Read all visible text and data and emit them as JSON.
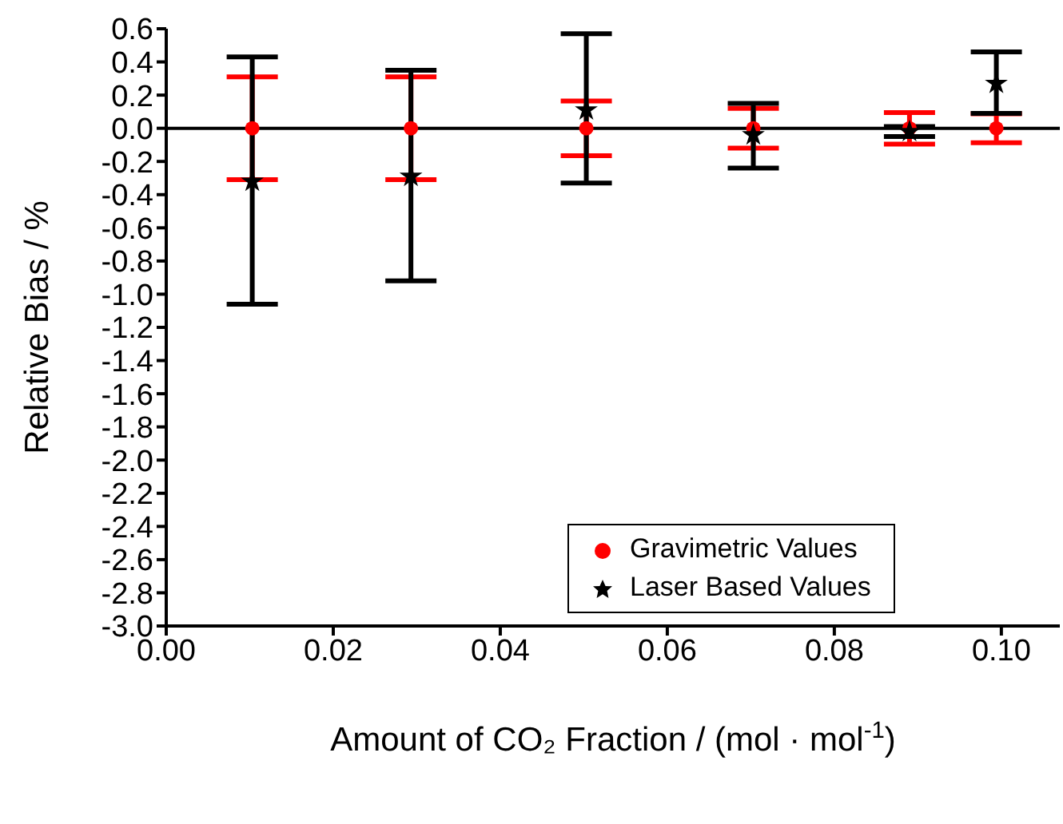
{
  "chart_data": {
    "type": "scatter",
    "xlabel": "Amount of CO₂ Fraction / (mol · mol$^{-1}$)",
    "ylabel": "Relative Bias  /  %",
    "series": [
      {
        "name": "Gravimetric Values",
        "color": "#ff0000",
        "marker": "circle",
        "x": [
          0.0103,
          0.0293,
          0.0503,
          0.0703,
          0.089,
          0.0994
        ],
        "values": [
          0,
          0,
          0,
          0,
          0,
          0
        ],
        "errors": [
          0.31,
          0.31,
          0.165,
          0.12,
          0.095,
          0.087
        ]
      },
      {
        "name": "Laser Based Values",
        "color": "#000000",
        "marker": "star",
        "x": [
          0.0103,
          0.0293,
          0.0503,
          0.0703,
          0.089,
          0.0994
        ],
        "values": [
          -0.32,
          -0.29,
          0.11,
          -0.04,
          -0.02,
          0.27
        ],
        "errors": [
          [
            -1.06,
            0.43
          ],
          [
            -0.92,
            0.35
          ],
          [
            -0.33,
            0.57
          ],
          [
            -0.24,
            0.15
          ],
          [
            -0.05,
            0.01
          ],
          [
            0.09,
            0.46
          ]
        ]
      }
    ],
    "xlim": [
      0,
      0.107
    ],
    "xticks": [
      {
        "value": 0,
        "label": "0.00"
      },
      {
        "value": 0.02,
        "label": "0.02"
      },
      {
        "value": 0.04,
        "label": "0.04"
      },
      {
        "value": 0.06,
        "label": "0.06"
      },
      {
        "value": 0.08,
        "label": "0.08"
      },
      {
        "value": 0.1,
        "label": "0.10"
      }
    ],
    "ylim": [
      -3,
      0.6
    ],
    "yticks": [
      {
        "value": 0.6,
        "label": "0.6"
      },
      {
        "value": 0.4,
        "label": "0.4"
      },
      {
        "value": 0.2,
        "label": "0.2"
      },
      {
        "value": 0,
        "label": "0.0"
      },
      {
        "value": -0.2,
        "label": "-0.2"
      },
      {
        "value": -0.4,
        "label": "-0.4"
      },
      {
        "value": -0.6,
        "label": "-0.6"
      },
      {
        "value": -0.8,
        "label": "-0.8"
      },
      {
        "value": -1,
        "label": "-1.0"
      },
      {
        "value": -1.2,
        "label": "-1.2"
      },
      {
        "value": -1.4,
        "label": "-1.4"
      },
      {
        "value": -1.6,
        "label": "-1.6"
      },
      {
        "value": -1.8,
        "label": "-1.8"
      },
      {
        "value": -2,
        "label": "-2.0"
      },
      {
        "value": -2.2,
        "label": "-2.2"
      },
      {
        "value": -2.4,
        "label": "-2.4"
      },
      {
        "value": -2.6,
        "label": "-2.6"
      },
      {
        "value": -2.8,
        "label": "-2.8"
      },
      {
        "value": -3,
        "label": "-3.0"
      }
    ],
    "ref_lines": [
      {
        "axis": "y",
        "value": 0,
        "label": null,
        "color": "#000000"
      }
    ],
    "legend": "bottom right"
  }
}
